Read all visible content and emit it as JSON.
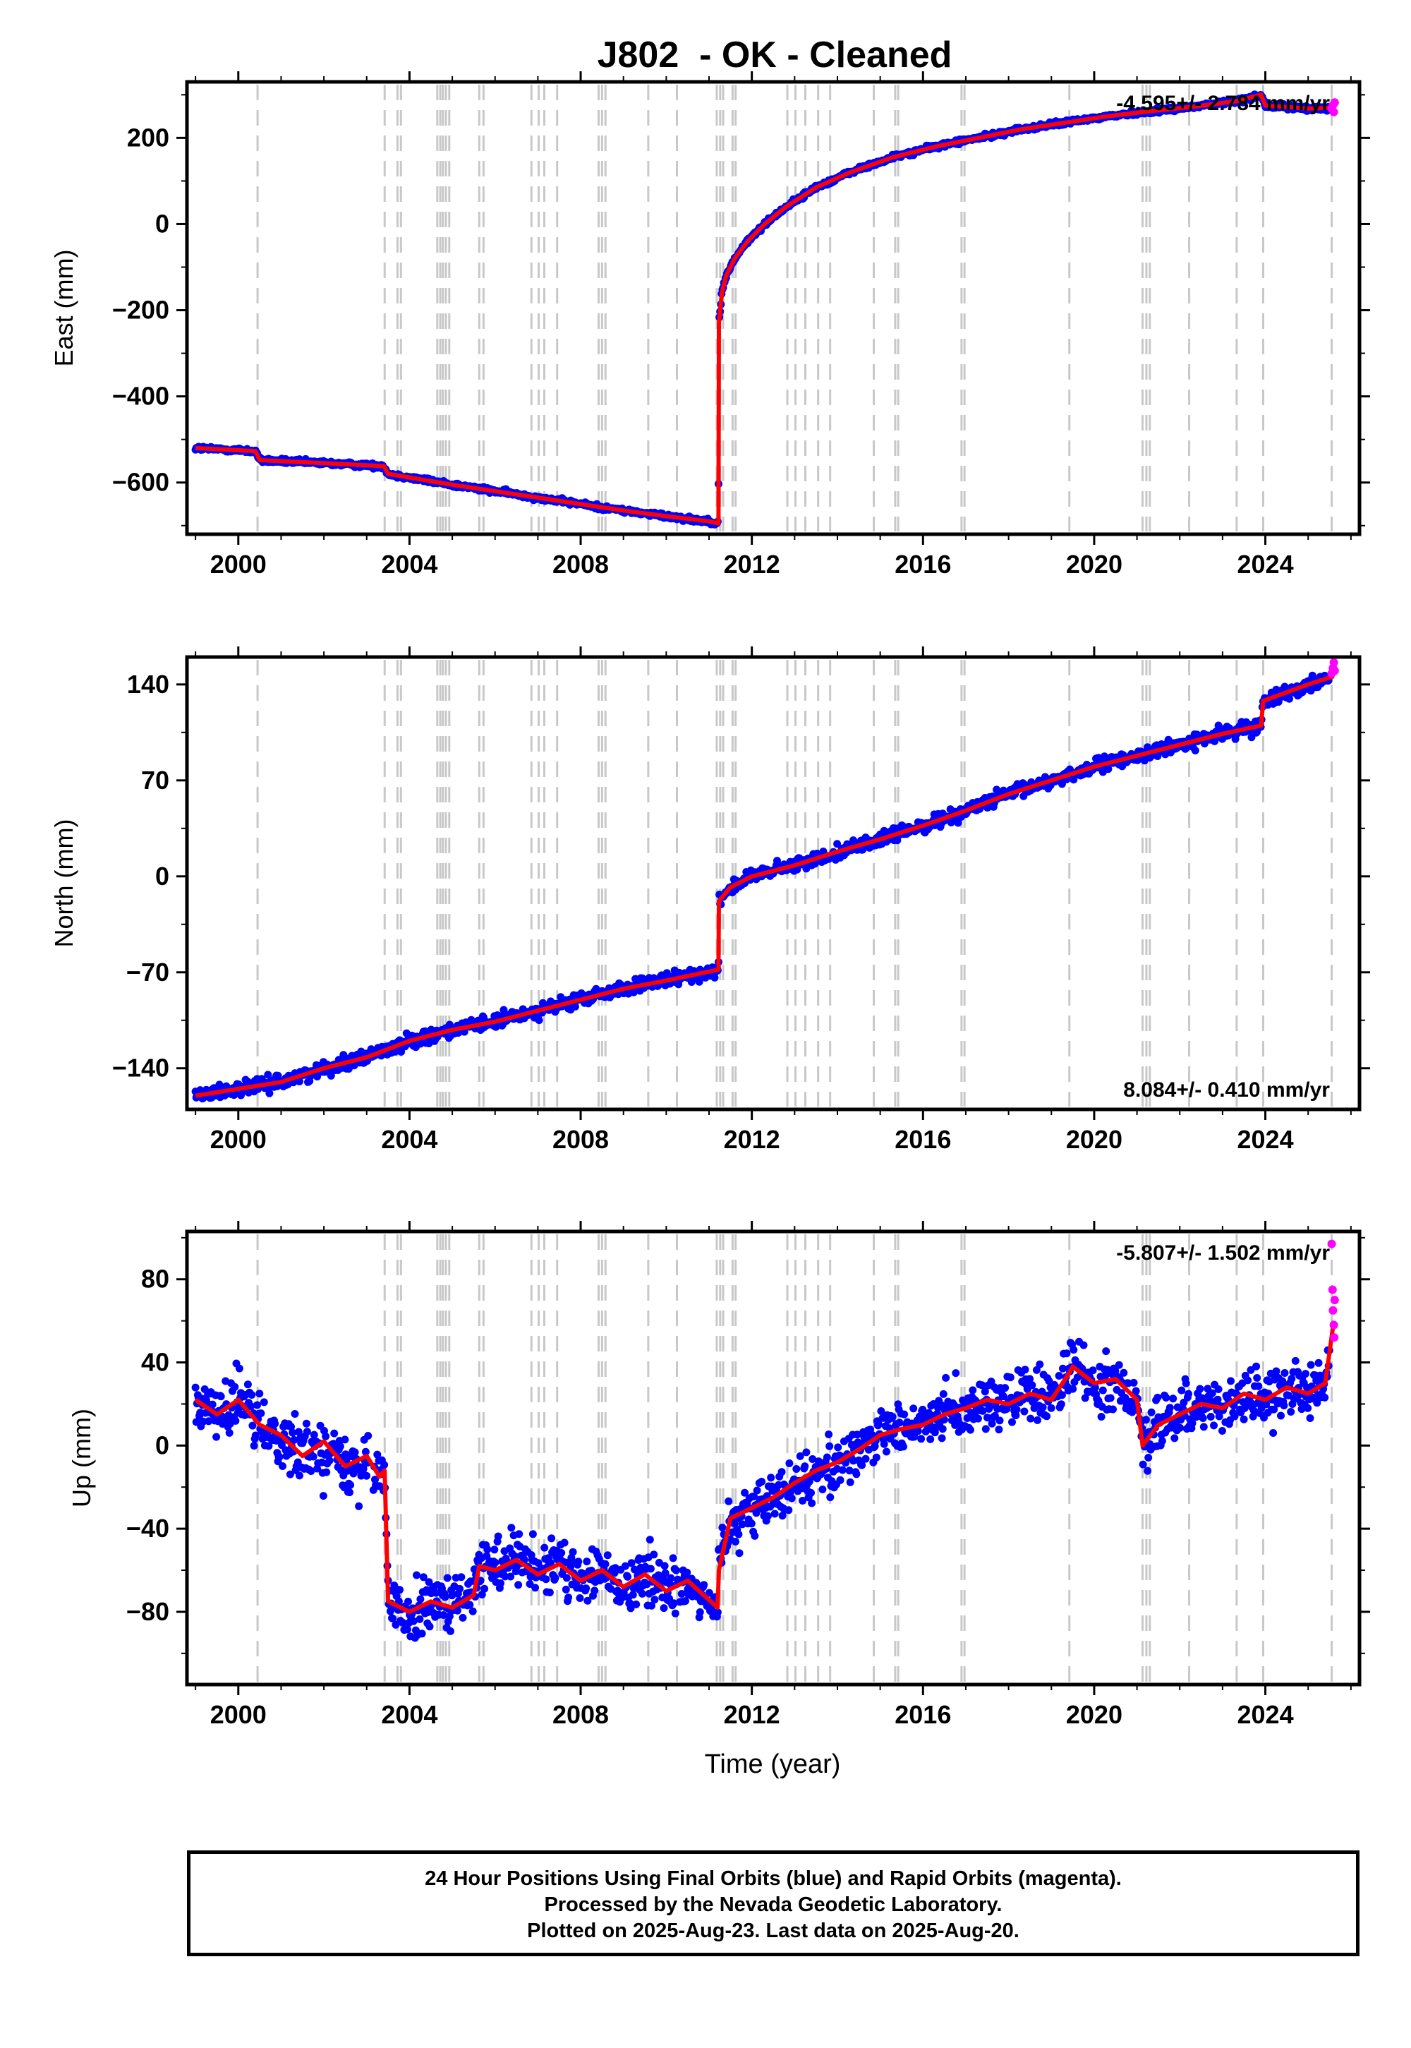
{
  "title": "J802  - OK - Cleaned",
  "colors": {
    "final_orbits": "#0000ff",
    "rapid_orbits": "#ff00ff",
    "model": "#ff0000",
    "event_lines": "#c8c8c8",
    "frame": "#000000"
  },
  "x_axis": {
    "label": "Time (year)",
    "range": [
      1998.8,
      2026.2
    ],
    "ticks": [
      2000,
      2004,
      2008,
      2012,
      2016,
      2020,
      2024
    ],
    "tick_labels": [
      "2000",
      "2004",
      "2008",
      "2012",
      "2016",
      "2020",
      "2024"
    ],
    "minor_step": 1
  },
  "event_lines": [
    2000.45,
    2003.42,
    2003.72,
    2003.8,
    2004.65,
    2004.72,
    2004.78,
    2004.85,
    2004.93,
    2005.63,
    2005.73,
    2006.85,
    2007.02,
    2007.15,
    2007.45,
    2008.42,
    2008.5,
    2008.58,
    2009.58,
    2010.25,
    2011.18,
    2011.26,
    2011.33,
    2011.55,
    2011.62,
    2012.83,
    2013.02,
    2013.25,
    2013.55,
    2013.83,
    2014.85,
    2015.35,
    2015.42,
    2016.9,
    2016.97,
    2019.42,
    2021.13,
    2021.22,
    2021.3,
    2022.22,
    2023.33,
    2023.95,
    2025.55
  ],
  "chart_data": [
    {
      "type": "scatter",
      "name": "east",
      "ylabel": "East (mm)",
      "ylim": [
        -720,
        330
      ],
      "yticks": [
        200,
        0,
        -200,
        -400,
        -600
      ],
      "ytick_labels": [
        "200",
        "0",
        "−200",
        "−400",
        "−600"
      ],
      "minor_step": 100,
      "rate_label": "-4.595+/- 2.784 mm/yr",
      "rate_position": "top-right",
      "model": {
        "x": [
          1999.0,
          2000.4,
          2000.5,
          2002.0,
          2003.4,
          2003.5,
          2005.0,
          2006.0,
          2007.0,
          2008.0,
          2009.0,
          2010.0,
          2011.0,
          2011.22,
          2011.23,
          2011.3,
          2011.4,
          2011.6,
          2011.9,
          2012.3,
          2012.8,
          2013.5,
          2014.3,
          2015.3,
          2016.3,
          2017.3,
          2018.3,
          2019.3,
          2020.3,
          2021.3,
          2022.3,
          2023.3,
          2023.9,
          2024.0,
          2025.0,
          2025.6
        ],
        "y": [
          -520,
          -527,
          -548,
          -555,
          -562,
          -580,
          -605,
          -620,
          -635,
          -650,
          -665,
          -678,
          -690,
          -695,
          -230,
          -160,
          -120,
          -80,
          -40,
          0,
          40,
          85,
          120,
          155,
          180,
          200,
          220,
          235,
          250,
          262,
          272,
          285,
          300,
          275,
          268,
          270
        ]
      },
      "rapid": {
        "x": [
          2025.55,
          2025.58,
          2025.6,
          2025.62
        ],
        "y": [
          268,
          276,
          260,
          282
        ]
      }
    },
    {
      "type": "scatter",
      "name": "north",
      "ylabel": "North (mm)",
      "ylim": [
        -170,
        160
      ],
      "yticks": [
        140,
        70,
        0,
        -70,
        -140
      ],
      "ytick_labels": [
        "140",
        "70",
        "0",
        "−70",
        "−140"
      ],
      "minor_step": 35,
      "rate_label": "8.084+/- 0.410 mm/yr",
      "rate_position": "bottom-right",
      "model": {
        "x": [
          1999.0,
          2000.0,
          2001.0,
          2002.0,
          2003.0,
          2004.0,
          2005.0,
          2006.0,
          2007.0,
          2008.0,
          2009.0,
          2010.0,
          2011.22,
          2011.23,
          2011.5,
          2012.0,
          2013.0,
          2014.0,
          2015.0,
          2016.0,
          2017.0,
          2018.0,
          2019.0,
          2020.0,
          2021.0,
          2022.0,
          2023.0,
          2023.9,
          2023.95,
          2025.0,
          2025.6
        ],
        "y": [
          -160,
          -155,
          -150,
          -140,
          -132,
          -120,
          -112,
          -106,
          -98,
          -90,
          -82,
          -76,
          -68,
          -18,
          -8,
          0,
          8,
          18,
          27,
          37,
          48,
          60,
          70,
          80,
          88,
          96,
          104,
          110,
          128,
          140,
          146
        ]
      },
      "rapid": {
        "x": [
          2025.55,
          2025.58,
          2025.6,
          2025.62
        ],
        "y": [
          148,
          152,
          156,
          150
        ]
      }
    },
    {
      "type": "scatter",
      "name": "up",
      "ylabel": "Up (mm)",
      "ylim": [
        -115,
        103
      ],
      "yticks": [
        80,
        40,
        0,
        -40,
        -80
      ],
      "ytick_labels": [
        "80",
        "40",
        "0",
        "−40",
        "−80"
      ],
      "minor_step": 20,
      "rate_label": "-5.807+/- 1.502 mm/yr",
      "rate_position": "top-right",
      "model": {
        "x": [
          1999.0,
          1999.5,
          2000.0,
          2000.5,
          2001.0,
          2001.5,
          2002.0,
          2002.5,
          2003.0,
          2003.3,
          2003.42,
          2003.5,
          2004.0,
          2004.5,
          2005.0,
          2005.5,
          2005.63,
          2006.0,
          2006.5,
          2007.0,
          2007.5,
          2008.0,
          2008.5,
          2009.0,
          2009.5,
          2010.0,
          2010.5,
          2011.2,
          2011.23,
          2011.5,
          2012.0,
          2012.5,
          2013.0,
          2013.5,
          2014.0,
          2014.5,
          2015.0,
          2015.5,
          2016.0,
          2016.5,
          2017.0,
          2017.5,
          2018.0,
          2018.5,
          2019.0,
          2019.42,
          2019.5,
          2020.0,
          2020.5,
          2021.0,
          2021.13,
          2021.5,
          2022.0,
          2022.5,
          2023.0,
          2023.5,
          2024.0,
          2024.5,
          2025.0,
          2025.4,
          2025.6
        ],
        "y": [
          22,
          15,
          22,
          10,
          5,
          -5,
          2,
          -10,
          -5,
          -15,
          -12,
          -75,
          -80,
          -75,
          -78,
          -72,
          -58,
          -60,
          -55,
          -62,
          -57,
          -65,
          -60,
          -68,
          -62,
          -70,
          -65,
          -78,
          -60,
          -35,
          -30,
          -25,
          -18,
          -12,
          -8,
          -2,
          5,
          8,
          10,
          15,
          18,
          22,
          20,
          25,
          22,
          35,
          38,
          30,
          32,
          22,
          0,
          10,
          15,
          20,
          18,
          25,
          22,
          28,
          25,
          30,
          60
        ]
      },
      "rapid": {
        "x": [
          2025.55,
          2025.57,
          2025.58,
          2025.6,
          2025.61,
          2025.62
        ],
        "y": [
          97,
          75,
          65,
          58,
          52,
          70
        ]
      }
    }
  ],
  "footer": {
    "line1": "24 Hour Positions Using Final Orbits (blue) and Rapid Orbits (magenta).",
    "line2": "Processed by the Nevada Geodetic Laboratory.",
    "line3": "Plotted on 2025-Aug-23. Last data on 2025-Aug-20."
  }
}
